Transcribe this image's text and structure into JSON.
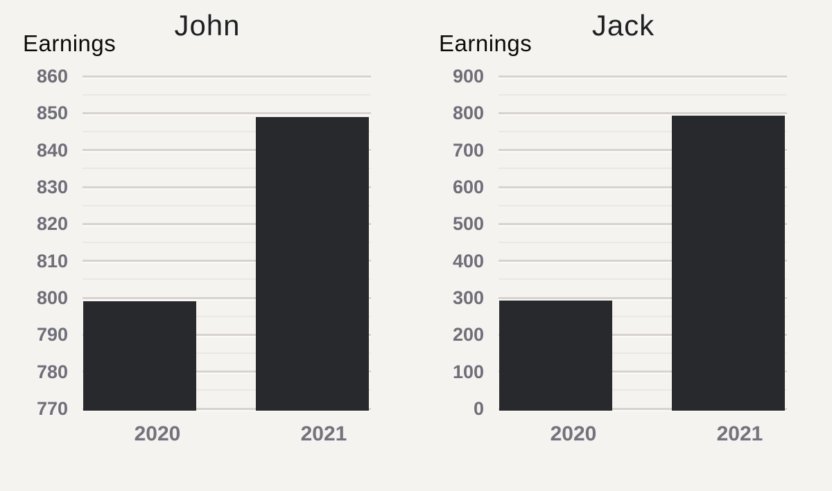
{
  "colors": {
    "background": "#f4f3ef",
    "bar": "#28292d",
    "gridline": "#d8d2d1",
    "gridline_highlight": "#fbfaf7",
    "y_tick_text": "#6f6e79",
    "x_tick_text": "#73727d",
    "title_text": "#1e2023",
    "axis_label_text": "#0b0b0b"
  },
  "chart_data": [
    {
      "type": "bar",
      "title": "John",
      "ylabel": "Earnings",
      "xlabel": "",
      "categories": [
        "2020",
        "2021"
      ],
      "values": [
        799,
        849
      ],
      "ylim": [
        770,
        860
      ],
      "ytick_step": 10,
      "y_ticks": [
        "860",
        "850",
        "840",
        "830",
        "820",
        "810",
        "800",
        "790",
        "780",
        "770"
      ],
      "grid": true,
      "legend": "none"
    },
    {
      "type": "bar",
      "title": "Jack",
      "ylabel": "Earnings",
      "xlabel": "",
      "categories": [
        "2020",
        "2021"
      ],
      "values": [
        293,
        793
      ],
      "ylim": [
        0,
        900
      ],
      "ytick_step": 100,
      "y_ticks": [
        "900",
        "800",
        "700",
        "600",
        "500",
        "400",
        "300",
        "200",
        "100",
        "0"
      ],
      "grid": true,
      "legend": "none"
    }
  ]
}
